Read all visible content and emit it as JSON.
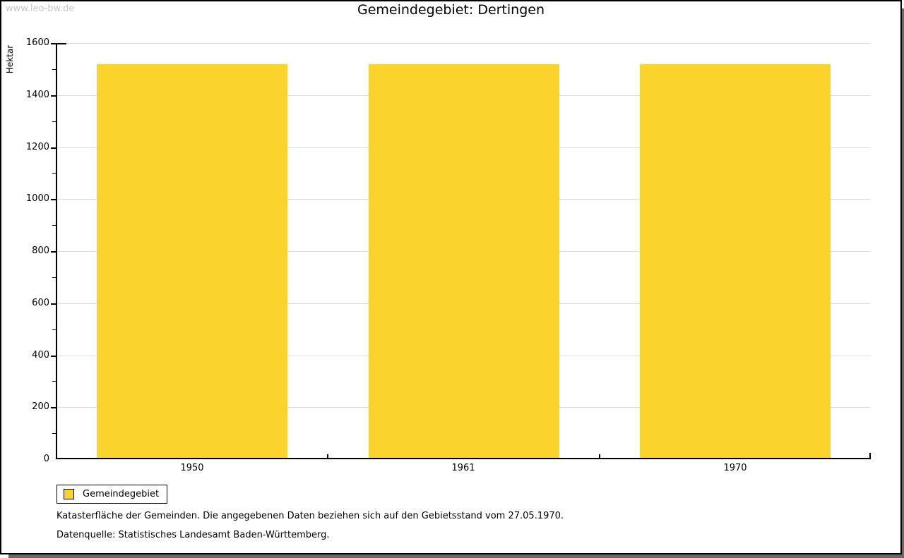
{
  "watermark": "www.leo-bw.de",
  "chart_data": {
    "type": "bar",
    "title": "Gemeindegebiet: Dertingen",
    "ylabel": "Hektar",
    "xlabel": "",
    "categories": [
      "1950",
      "1961",
      "1970"
    ],
    "series": [
      {
        "name": "Gemeindegebiet",
        "values": [
          1519,
          1519,
          1519
        ]
      }
    ],
    "ylim": [
      0,
      1600
    ],
    "ytick_step": 200,
    "yminor_step": 100,
    "grid": true,
    "legend_position": "bottom-left"
  },
  "legend": {
    "label": "Gemeindegebiet"
  },
  "footer": {
    "line1": "Katasterfläche der Gemeinden. Die angegebenen Daten beziehen sich auf den Gebietsstand vom 27.05.1970.",
    "line2": "Datenquelle: Statistisches Landesamt Baden-Württemberg."
  },
  "colors": {
    "bar": "#fbd32d",
    "grid": "#dcdcdc",
    "axis": "#000000",
    "watermark": "#c6c6c6",
    "shadow": "#6a6a6a"
  }
}
